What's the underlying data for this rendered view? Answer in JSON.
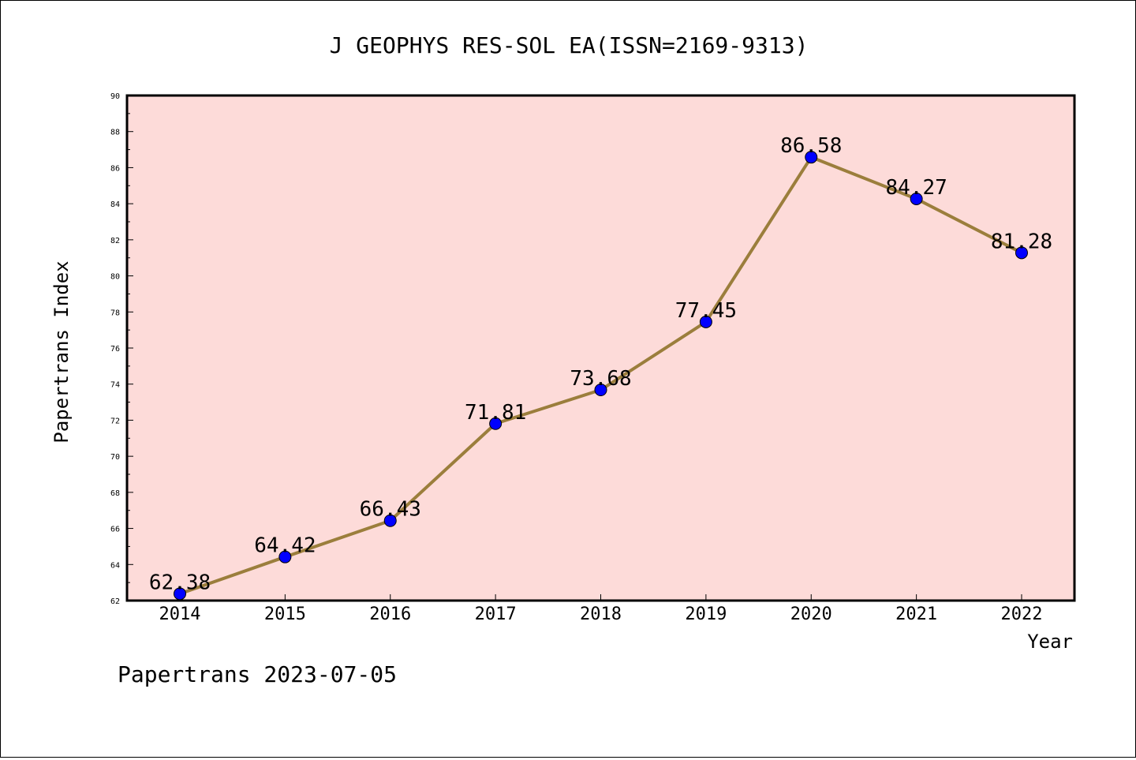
{
  "chart_data": {
    "type": "line",
    "title": "J GEOPHYS RES-SOL EA(ISSN=2169-9313)",
    "xlabel": "Year",
    "ylabel": "Papertrans Index",
    "categories": [
      "2014",
      "2015",
      "2016",
      "2017",
      "2018",
      "2019",
      "2020",
      "2021",
      "2022"
    ],
    "series": [
      {
        "values": [
          62.38,
          64.42,
          66.43,
          71.81,
          73.68,
          77.45,
          86.58,
          84.27,
          81.28
        ],
        "labels": [
          "62.38",
          "64.42",
          "66.43",
          "71.81",
          "73.68",
          "77.45",
          "86.58",
          "84.27",
          "81.28"
        ]
      }
    ],
    "ylim": [
      62,
      90
    ],
    "yticks": [
      "62",
      "64",
      "66",
      "68",
      "70",
      "72",
      "74",
      "76",
      "78",
      "80",
      "82",
      "84",
      "86",
      "88",
      "90"
    ],
    "grid": false,
    "legend": "none",
    "colors": {
      "plot_background": "#fddbd9",
      "line": "#9b7e3c",
      "marker": "#0000ff",
      "axes": "#000000"
    }
  },
  "footer": {
    "watermark": "Papertrans 2023-07-05"
  }
}
